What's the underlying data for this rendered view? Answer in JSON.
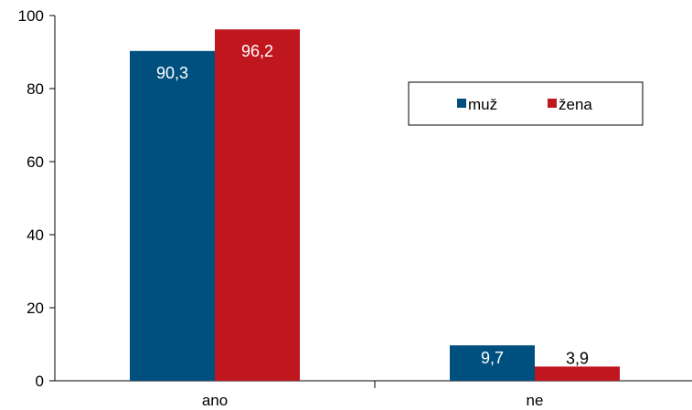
{
  "chart_data": {
    "type": "bar",
    "categories": [
      "ano",
      "ne"
    ],
    "series": [
      {
        "name": "muž",
        "values": [
          90.3,
          9.7
        ],
        "value_labels": [
          "90,3",
          "9,7"
        ],
        "color": "#00507F"
      },
      {
        "name": "žena",
        "values": [
          96.2,
          3.9
        ],
        "value_labels": [
          "96,2",
          "3,9"
        ],
        "color": "#C0171F"
      }
    ],
    "ylim": [
      0,
      100
    ],
    "yticks": [
      0,
      20,
      40,
      60,
      80,
      100
    ],
    "ytick_labels": [
      "0",
      "20",
      "40",
      "60",
      "80",
      "100"
    ],
    "grid": false,
    "legend_position": "upper-right",
    "title": "",
    "xlabel": "",
    "ylabel": ""
  }
}
